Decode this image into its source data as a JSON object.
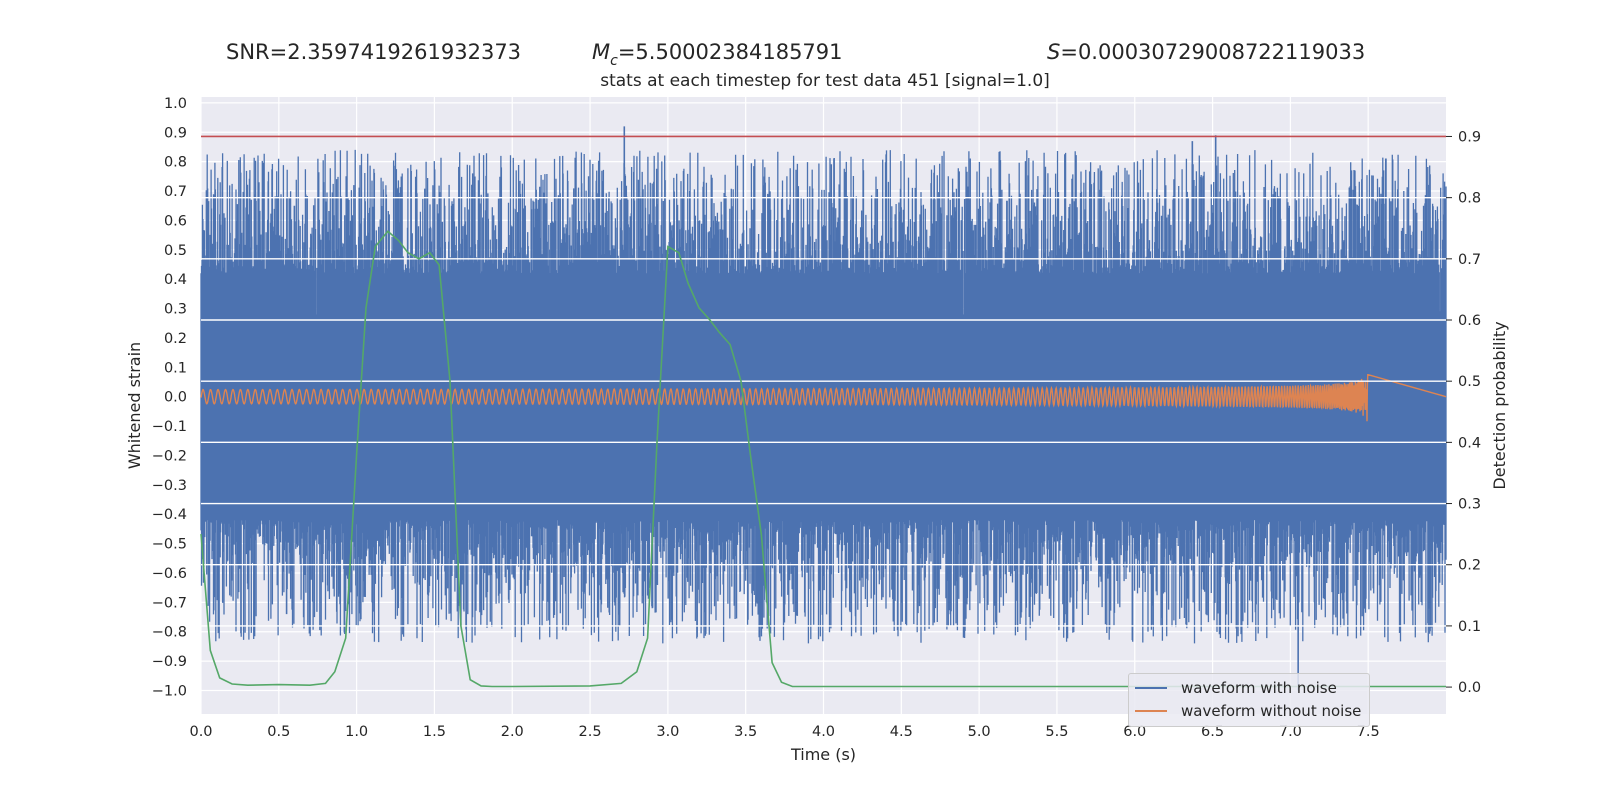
{
  "header": {
    "snr_label": "SNR=2.3597419261932373",
    "mc_symbol": "M",
    "mc_subscript": "c",
    "mc_value": "=5.50002384185791",
    "s_symbol": "S",
    "s_value": "=0.00030729008722119033"
  },
  "chart_data": {
    "type": "line",
    "title": "stats at each timestep for test data 451 [signal=1.0]",
    "xlabel": "Time (s)",
    "ylabel": "Whitened strain",
    "y2label": "Detection probability",
    "xlim": [
      0,
      8
    ],
    "ylim": [
      -1.08,
      1.02
    ],
    "y2lim": [
      -0.044,
      0.9645
    ],
    "xticks": [
      "0.0",
      "0.5",
      "1.0",
      "1.5",
      "2.0",
      "2.5",
      "3.0",
      "3.5",
      "4.0",
      "4.5",
      "5.0",
      "5.5",
      "6.0",
      "6.5",
      "7.0",
      "7.5"
    ],
    "yticks": [
      "1.0",
      "0.9",
      "0.8",
      "0.7",
      "0.6",
      "0.5",
      "0.4",
      "0.3",
      "0.2",
      "0.1",
      "0.0",
      "-0.1",
      "-0.2",
      "-0.3",
      "-0.4",
      "-0.5",
      "-0.6",
      "-0.7",
      "-0.8",
      "-0.9",
      "-1.0"
    ],
    "y2ticks": [
      "0.9",
      "0.8",
      "0.7",
      "0.6",
      "0.5",
      "0.4",
      "0.3",
      "0.2",
      "0.1",
      "0.0"
    ],
    "threshold": 0.9,
    "series": [
      {
        "name": "waveform with noise",
        "color": "#4c72b0",
        "axis": "left",
        "description": "noise",
        "band_low": -0.42,
        "band_high": 0.42,
        "peak_max": 0.92,
        "trough_min": -1.0
      },
      {
        "name": "waveform without noise",
        "color": "#dd8452",
        "axis": "left",
        "description": "chirp",
        "merger_time": 7.5,
        "peak_amplitude": 0.1
      },
      {
        "name": "detection probability",
        "color": "#55a868",
        "axis": "right",
        "x": [
          0.0,
          0.06,
          0.12,
          0.2,
          0.3,
          0.5,
          0.7,
          0.8,
          0.86,
          0.93,
          1.0,
          1.06,
          1.12,
          1.2,
          1.27,
          1.33,
          1.4,
          1.47,
          1.53,
          1.6,
          1.67,
          1.73,
          1.8,
          1.87,
          2.0,
          2.5,
          2.7,
          2.8,
          2.87,
          2.93,
          3.0,
          3.07,
          3.13,
          3.2,
          3.27,
          3.33,
          3.4,
          3.47,
          3.53,
          3.6,
          3.67,
          3.73,
          3.8,
          4.0,
          8.0
        ],
        "y": [
          0.25,
          0.06,
          0.015,
          0.005,
          0.003,
          0.004,
          0.003,
          0.006,
          0.025,
          0.08,
          0.38,
          0.62,
          0.72,
          0.745,
          0.73,
          0.71,
          0.7,
          0.71,
          0.69,
          0.5,
          0.1,
          0.012,
          0.002,
          0.001,
          0.001,
          0.002,
          0.006,
          0.025,
          0.08,
          0.4,
          0.72,
          0.71,
          0.66,
          0.62,
          0.6,
          0.58,
          0.56,
          0.5,
          0.38,
          0.25,
          0.04,
          0.008,
          0.001,
          0.001,
          0.001
        ]
      }
    ],
    "legend": [
      "waveform with noise",
      "waveform without noise"
    ],
    "legend_position": "lower right",
    "grid": true
  }
}
